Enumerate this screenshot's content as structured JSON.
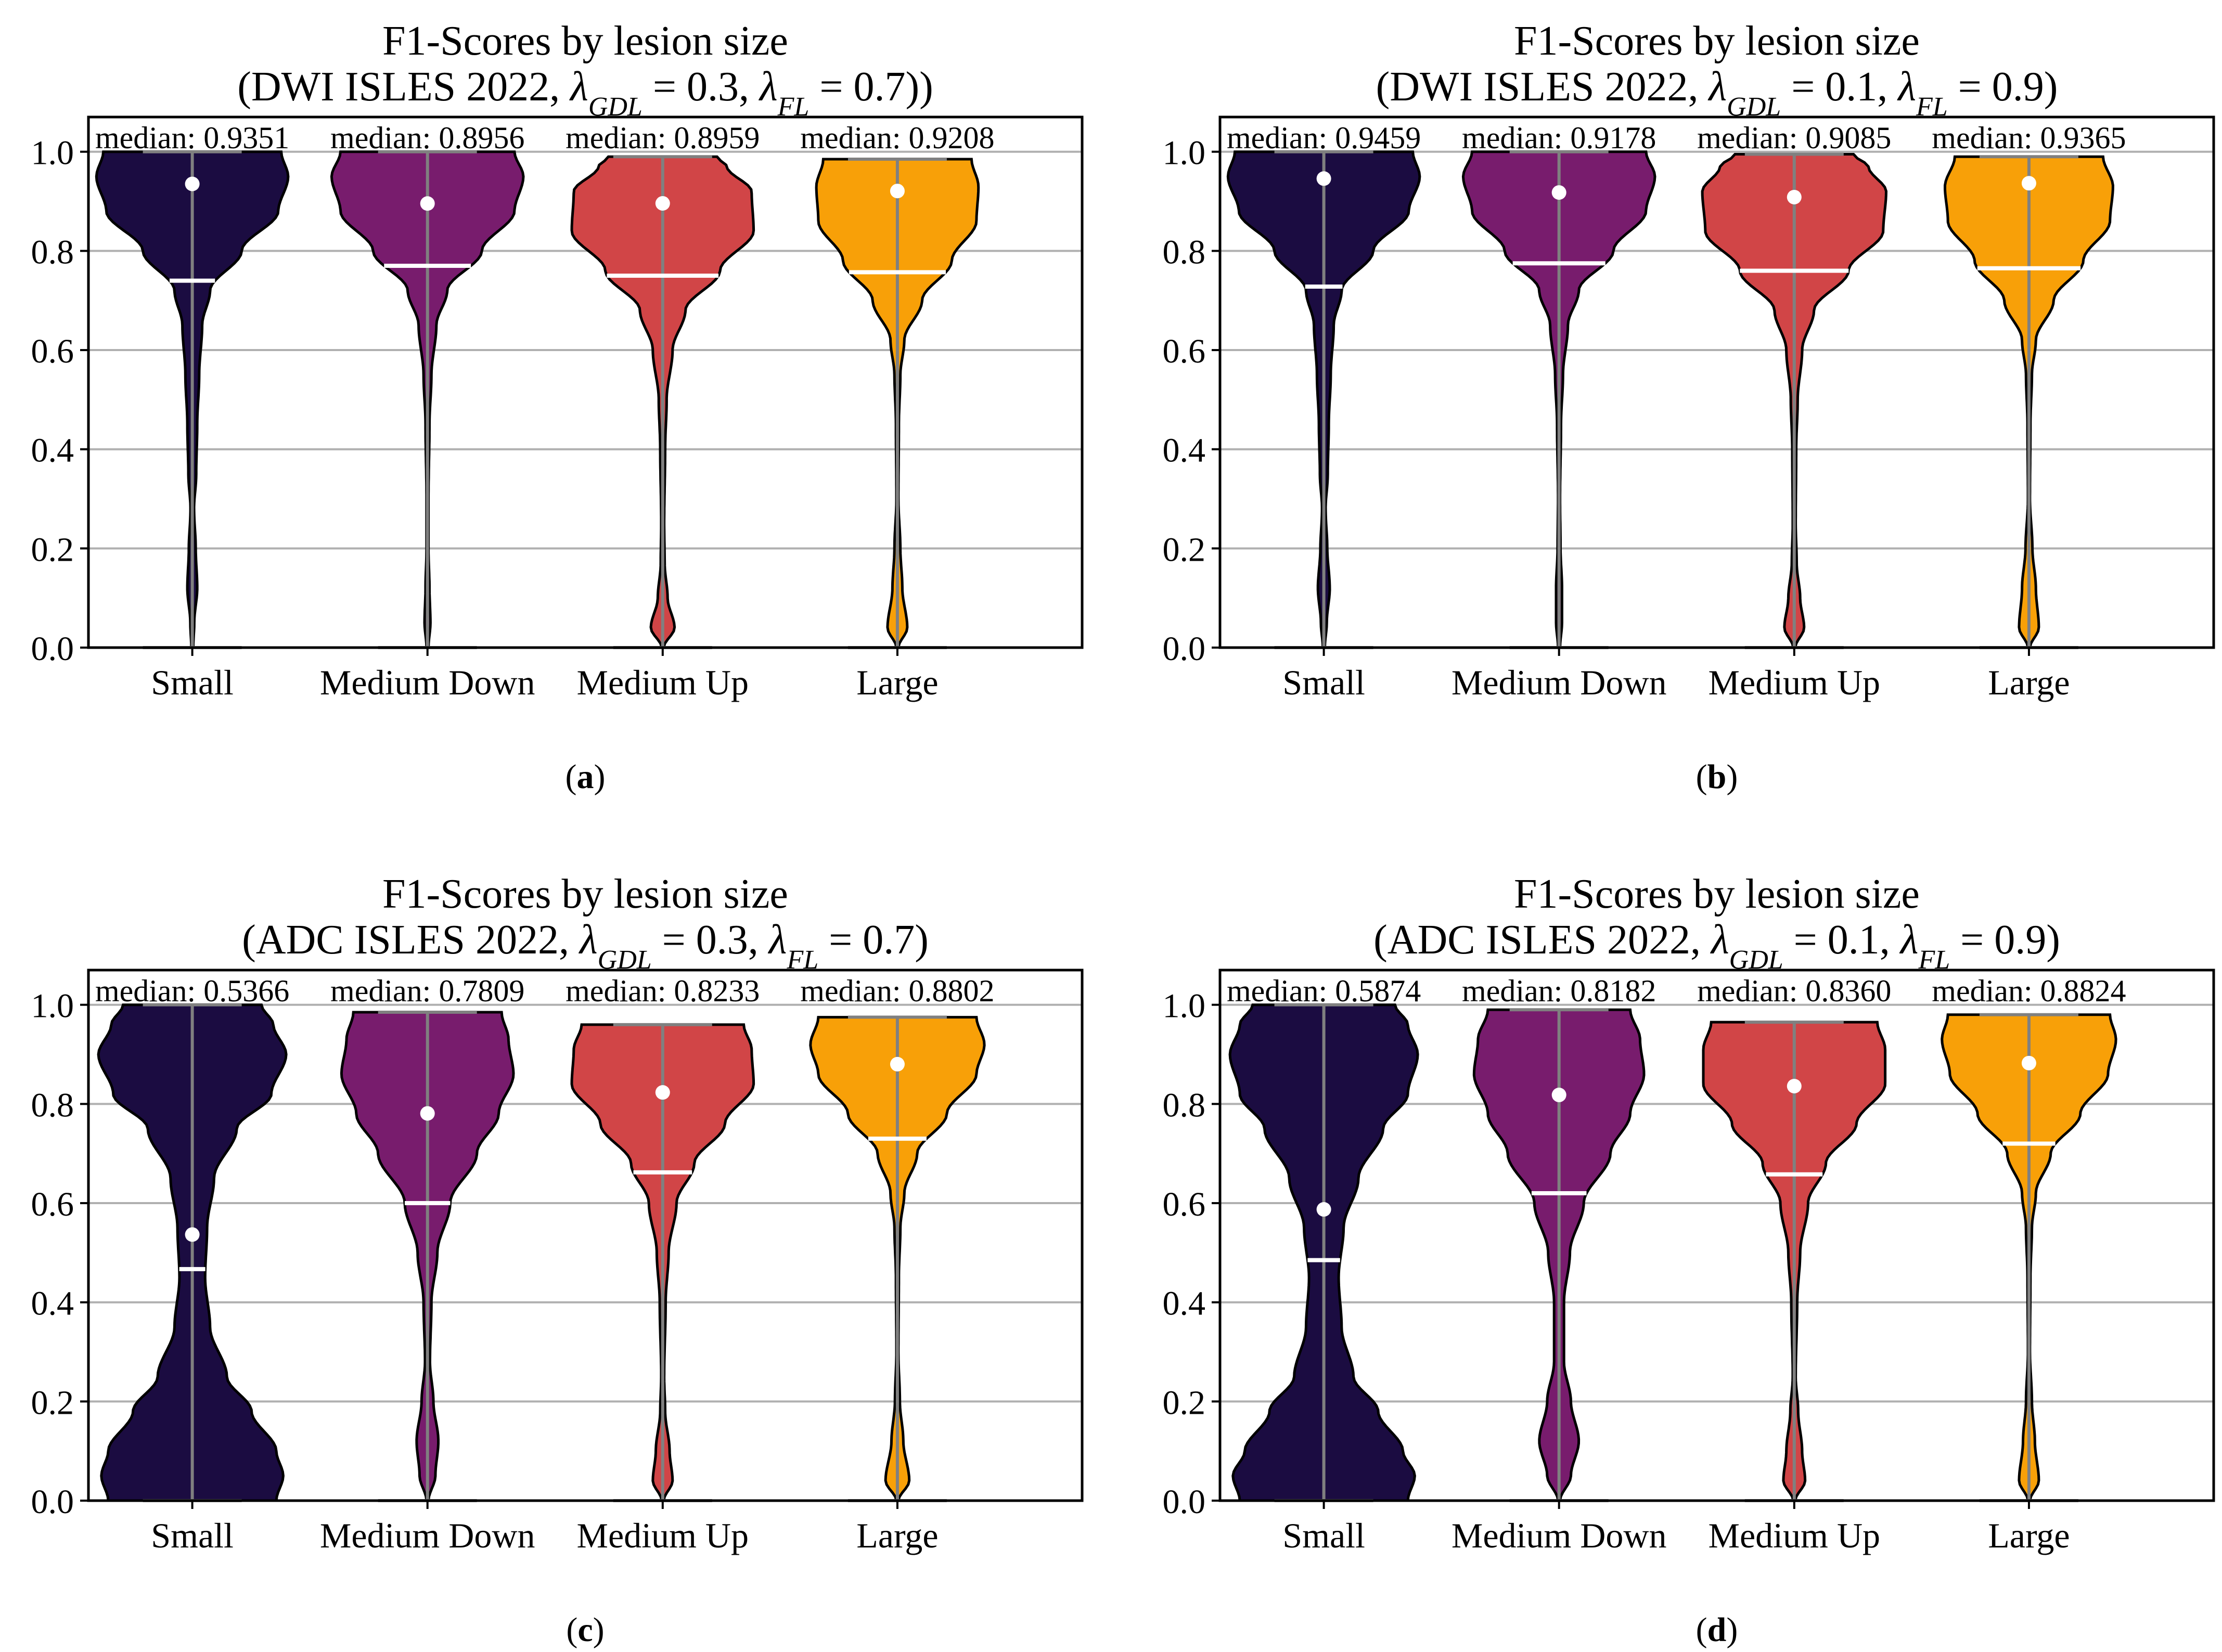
{
  "colors": {
    "Small": "#1b0c41",
    "Medium Down": "#781c6d",
    "Medium Up": "#d14547",
    "Large": "#f8a008",
    "grid": "#b0b0b0",
    "whisker": "#808080",
    "quartile": "#ffffff",
    "median_point": "#ffffff"
  },
  "chart_data": [
    {
      "type": "violin",
      "panel_label": "(a)",
      "title": "F1-Scores by lesion size",
      "subtitle_prefix": "(DWI ISLES 2022, ",
      "lambda_gdl": "0.3",
      "lambda_fl": "0.7",
      "subtitle_suffix": "))",
      "categories": [
        "Small",
        "Medium Down",
        "Medium Up",
        "Large"
      ],
      "median_labels": [
        "median: 0.9351",
        "median: 0.8956",
        "median: 0.8959",
        "median: 0.9208"
      ],
      "medians": [
        0.9351,
        0.8956,
        0.8959,
        0.9208
      ],
      "lower_quartiles": [
        0.74,
        0.77,
        0.75,
        0.757
      ],
      "max_values": [
        1.0,
        1.0,
        0.99,
        0.985
      ],
      "ylim": [
        0,
        1.07
      ],
      "yticks": [
        "0.0",
        "0.2",
        "0.4",
        "0.6",
        "0.8",
        "1.0"
      ],
      "shapes": [
        [
          [
            0,
            0.01
          ],
          [
            0.05,
            0.02
          ],
          [
            0.12,
            0.05
          ],
          [
            0.2,
            0.035
          ],
          [
            0.28,
            0.018
          ],
          [
            0.35,
            0.04
          ],
          [
            0.45,
            0.05
          ],
          [
            0.55,
            0.07
          ],
          [
            0.65,
            0.1
          ],
          [
            0.72,
            0.18
          ],
          [
            0.8,
            0.5
          ],
          [
            0.88,
            0.87
          ],
          [
            0.95,
            0.97
          ],
          [
            1.0,
            0.9
          ]
        ],
        [
          [
            0,
            0.01
          ],
          [
            0.05,
            0.03
          ],
          [
            0.12,
            0.02
          ],
          [
            0.2,
            0.01
          ],
          [
            0.3,
            0.01
          ],
          [
            0.45,
            0.02
          ],
          [
            0.55,
            0.04
          ],
          [
            0.65,
            0.09
          ],
          [
            0.72,
            0.2
          ],
          [
            0.8,
            0.55
          ],
          [
            0.88,
            0.88
          ],
          [
            0.95,
            0.97
          ],
          [
            1.0,
            0.88
          ]
        ],
        [
          [
            0,
            0.01
          ],
          [
            0.04,
            0.12
          ],
          [
            0.1,
            0.05
          ],
          [
            0.17,
            0.02
          ],
          [
            0.25,
            0.015
          ],
          [
            0.4,
            0.025
          ],
          [
            0.5,
            0.04
          ],
          [
            0.6,
            0.1
          ],
          [
            0.68,
            0.23
          ],
          [
            0.76,
            0.58
          ],
          [
            0.84,
            0.92
          ],
          [
            0.92,
            0.9
          ],
          [
            0.97,
            0.65
          ],
          [
            0.99,
            0.55
          ]
        ],
        [
          [
            0,
            0.01
          ],
          [
            0.04,
            0.1
          ],
          [
            0.12,
            0.05
          ],
          [
            0.2,
            0.03
          ],
          [
            0.3,
            0.01
          ],
          [
            0.45,
            0.015
          ],
          [
            0.55,
            0.03
          ],
          [
            0.62,
            0.07
          ],
          [
            0.7,
            0.25
          ],
          [
            0.78,
            0.55
          ],
          [
            0.86,
            0.8
          ],
          [
            0.93,
            0.82
          ],
          [
            0.985,
            0.75
          ]
        ]
      ]
    },
    {
      "type": "violin",
      "panel_label": "(b)",
      "title": "F1-Scores by lesion size",
      "subtitle_prefix": "(DWI ISLES 2022, ",
      "lambda_gdl": "0.1",
      "lambda_fl": "0.9",
      "subtitle_suffix": ")",
      "categories": [
        "Small",
        "Medium Down",
        "Medium Up",
        "Large"
      ],
      "median_labels": [
        "median: 0.9459",
        "median: 0.9178",
        "median: 0.9085",
        "median: 0.9365"
      ],
      "medians": [
        0.9459,
        0.9178,
        0.9085,
        0.9365
      ],
      "lower_quartiles": [
        0.728,
        0.775,
        0.76,
        0.765
      ],
      "max_values": [
        1.0,
        1.0,
        0.995,
        0.99
      ],
      "ylim": [
        0,
        1.07
      ],
      "yticks": [
        "0.0",
        "0.2",
        "0.4",
        "0.6",
        "0.8",
        "1.0"
      ],
      "shapes": [
        [
          [
            0,
            0.01
          ],
          [
            0.05,
            0.03
          ],
          [
            0.12,
            0.06
          ],
          [
            0.2,
            0.035
          ],
          [
            0.28,
            0.018
          ],
          [
            0.35,
            0.04
          ],
          [
            0.45,
            0.05
          ],
          [
            0.55,
            0.07
          ],
          [
            0.65,
            0.1
          ],
          [
            0.72,
            0.18
          ],
          [
            0.8,
            0.5
          ],
          [
            0.88,
            0.86
          ],
          [
            0.95,
            0.97
          ],
          [
            1.0,
            0.9
          ]
        ],
        [
          [
            0,
            0.01
          ],
          [
            0.05,
            0.03
          ],
          [
            0.12,
            0.03
          ],
          [
            0.2,
            0.015
          ],
          [
            0.3,
            0.01
          ],
          [
            0.45,
            0.02
          ],
          [
            0.55,
            0.04
          ],
          [
            0.65,
            0.09
          ],
          [
            0.72,
            0.2
          ],
          [
            0.8,
            0.55
          ],
          [
            0.88,
            0.88
          ],
          [
            0.95,
            0.97
          ],
          [
            1.0,
            0.88
          ]
        ],
        [
          [
            0,
            0.01
          ],
          [
            0.04,
            0.1
          ],
          [
            0.1,
            0.06
          ],
          [
            0.17,
            0.025
          ],
          [
            0.25,
            0.015
          ],
          [
            0.4,
            0.02
          ],
          [
            0.5,
            0.035
          ],
          [
            0.6,
            0.08
          ],
          [
            0.68,
            0.2
          ],
          [
            0.76,
            0.55
          ],
          [
            0.84,
            0.9
          ],
          [
            0.92,
            0.93
          ],
          [
            0.97,
            0.75
          ],
          [
            0.995,
            0.6
          ]
        ],
        [
          [
            0,
            0.01
          ],
          [
            0.04,
            0.1
          ],
          [
            0.12,
            0.07
          ],
          [
            0.2,
            0.035
          ],
          [
            0.3,
            0.01
          ],
          [
            0.45,
            0.015
          ],
          [
            0.55,
            0.03
          ],
          [
            0.62,
            0.07
          ],
          [
            0.7,
            0.25
          ],
          [
            0.78,
            0.55
          ],
          [
            0.86,
            0.82
          ],
          [
            0.93,
            0.85
          ],
          [
            0.99,
            0.75
          ]
        ]
      ]
    },
    {
      "type": "violin",
      "panel_label": "(c)",
      "title": "F1-Scores by lesion size",
      "subtitle_prefix": "(ADC ISLES 2022, ",
      "lambda_gdl": "0.3",
      "lambda_fl": "0.7",
      "subtitle_suffix": ")",
      "categories": [
        "Small",
        "Medium Down",
        "Medium Up",
        "Large"
      ],
      "median_labels": [
        "median: 0.5366",
        "median: 0.7809",
        "median: 0.8233",
        "median: 0.8802"
      ],
      "medians": [
        0.5366,
        0.7809,
        0.8233,
        0.8802
      ],
      "lower_quartiles": [
        0.467,
        0.6,
        0.662,
        0.73
      ],
      "max_values": [
        1.0,
        0.985,
        0.96,
        0.975
      ],
      "ylim": [
        0,
        1.07
      ],
      "yticks": [
        "0.0",
        "0.2",
        "0.4",
        "0.6",
        "0.8",
        "1.0"
      ],
      "shapes": [
        [
          [
            0,
            0.85
          ],
          [
            0.05,
            0.92
          ],
          [
            0.1,
            0.85
          ],
          [
            0.18,
            0.6
          ],
          [
            0.25,
            0.35
          ],
          [
            0.35,
            0.18
          ],
          [
            0.45,
            0.13
          ],
          [
            0.55,
            0.15
          ],
          [
            0.65,
            0.22
          ],
          [
            0.75,
            0.45
          ],
          [
            0.82,
            0.8
          ],
          [
            0.9,
            0.95
          ],
          [
            0.96,
            0.82
          ],
          [
            1.0,
            0.7
          ]
        ],
        [
          [
            0,
            0.01
          ],
          [
            0.05,
            0.08
          ],
          [
            0.12,
            0.11
          ],
          [
            0.2,
            0.06
          ],
          [
            0.28,
            0.025
          ],
          [
            0.4,
            0.04
          ],
          [
            0.5,
            0.1
          ],
          [
            0.6,
            0.23
          ],
          [
            0.7,
            0.5
          ],
          [
            0.78,
            0.72
          ],
          [
            0.86,
            0.87
          ],
          [
            0.93,
            0.82
          ],
          [
            0.985,
            0.75
          ]
        ],
        [
          [
            0,
            0.01
          ],
          [
            0.04,
            0.1
          ],
          [
            0.1,
            0.07
          ],
          [
            0.18,
            0.025
          ],
          [
            0.25,
            0.015
          ],
          [
            0.4,
            0.03
          ],
          [
            0.5,
            0.06
          ],
          [
            0.6,
            0.14
          ],
          [
            0.68,
            0.32
          ],
          [
            0.76,
            0.63
          ],
          [
            0.84,
            0.92
          ],
          [
            0.91,
            0.9
          ],
          [
            0.96,
            0.82
          ]
        ],
        [
          [
            0,
            0.01
          ],
          [
            0.04,
            0.12
          ],
          [
            0.12,
            0.06
          ],
          [
            0.2,
            0.025
          ],
          [
            0.3,
            0.01
          ],
          [
            0.45,
            0.015
          ],
          [
            0.55,
            0.03
          ],
          [
            0.62,
            0.07
          ],
          [
            0.7,
            0.2
          ],
          [
            0.78,
            0.5
          ],
          [
            0.86,
            0.8
          ],
          [
            0.92,
            0.88
          ],
          [
            0.975,
            0.8
          ]
        ]
      ]
    },
    {
      "type": "violin",
      "panel_label": "(d)",
      "title": "F1-Scores by lesion size",
      "subtitle_prefix": "(ADC ISLES 2022, ",
      "lambda_gdl": "0.1",
      "lambda_fl": "0.9",
      "subtitle_suffix": ")",
      "categories": [
        "Small",
        "Medium Down",
        "Medium Up",
        "Large"
      ],
      "median_labels": [
        "median: 0.5874",
        "median: 0.8182",
        "median: 0.8360",
        "median: 0.8824"
      ],
      "medians": [
        0.5874,
        0.8182,
        0.836,
        0.8824
      ],
      "lower_quartiles": [
        0.485,
        0.62,
        0.658,
        0.72
      ],
      "max_values": [
        1.0,
        0.99,
        0.965,
        0.98
      ],
      "ylim": [
        0,
        1.07
      ],
      "yticks": [
        "0.0",
        "0.2",
        "0.4",
        "0.6",
        "0.8",
        "1.0"
      ],
      "shapes": [
        [
          [
            0,
            0.85
          ],
          [
            0.05,
            0.92
          ],
          [
            0.1,
            0.8
          ],
          [
            0.18,
            0.55
          ],
          [
            0.25,
            0.3
          ],
          [
            0.35,
            0.18
          ],
          [
            0.45,
            0.15
          ],
          [
            0.55,
            0.2
          ],
          [
            0.65,
            0.35
          ],
          [
            0.75,
            0.6
          ],
          [
            0.82,
            0.85
          ],
          [
            0.9,
            0.95
          ],
          [
            0.96,
            0.85
          ],
          [
            1.0,
            0.72
          ]
        ],
        [
          [
            0,
            0.01
          ],
          [
            0.05,
            0.12
          ],
          [
            0.12,
            0.2
          ],
          [
            0.2,
            0.12
          ],
          [
            0.28,
            0.05
          ],
          [
            0.4,
            0.05
          ],
          [
            0.5,
            0.11
          ],
          [
            0.6,
            0.25
          ],
          [
            0.7,
            0.52
          ],
          [
            0.78,
            0.72
          ],
          [
            0.86,
            0.86
          ],
          [
            0.93,
            0.82
          ],
          [
            0.99,
            0.72
          ]
        ],
        [
          [
            0,
            0.01
          ],
          [
            0.04,
            0.11
          ],
          [
            0.1,
            0.08
          ],
          [
            0.18,
            0.04
          ],
          [
            0.25,
            0.015
          ],
          [
            0.4,
            0.03
          ],
          [
            0.5,
            0.06
          ],
          [
            0.6,
            0.14
          ],
          [
            0.68,
            0.32
          ],
          [
            0.76,
            0.63
          ],
          [
            0.84,
            0.92
          ],
          [
            0.91,
            0.92
          ],
          [
            0.965,
            0.84
          ]
        ],
        [
          [
            0,
            0.01
          ],
          [
            0.04,
            0.1
          ],
          [
            0.12,
            0.06
          ],
          [
            0.2,
            0.03
          ],
          [
            0.3,
            0.01
          ],
          [
            0.45,
            0.015
          ],
          [
            0.55,
            0.03
          ],
          [
            0.62,
            0.07
          ],
          [
            0.7,
            0.22
          ],
          [
            0.78,
            0.52
          ],
          [
            0.86,
            0.8
          ],
          [
            0.93,
            0.88
          ],
          [
            0.98,
            0.82
          ]
        ]
      ]
    }
  ]
}
